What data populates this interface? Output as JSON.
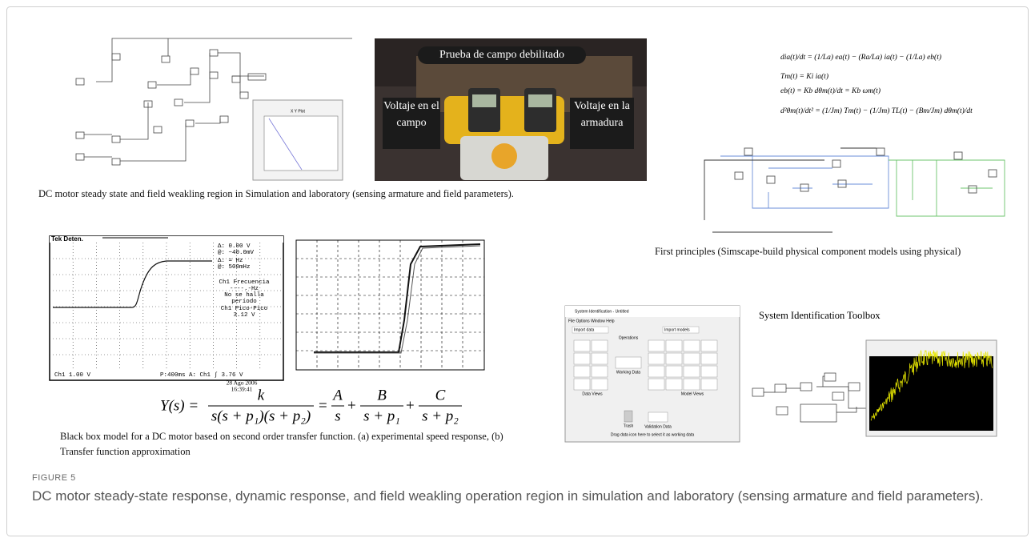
{
  "figure": {
    "label": "FIGURE 5",
    "caption": "DC motor steady-state response, dynamic response, and field weakling operation region in simulation and laboratory (sensing armature and field parameters)."
  },
  "panels": {
    "steady_state": {
      "caption": "DC motor steady state and field weakling region in Simulation  and laboratory (sensing armature  and field parameters).",
      "xy_plot_title": "X Y Plot",
      "photo_title": "Prueba de campo debilitado",
      "photo_left": "Voltaje en el campo",
      "photo_right": "Voltaje en la armadura"
    },
    "first_principles": {
      "equations": [
        "dia(t)/dt = (1/La) ea(t) − (Ra/La) ia(t) − (1/La) eb(t)",
        "Tm(t) = Ki ia(t)",
        "eb(t) = Kb dθm(t)/dt = Kb ωm(t)",
        "d²θm(t)/dt² = (1/Jm) Tm(t) − (1/Jm) TL(t) − (Bm/Jm) dθm(t)/dt"
      ],
      "caption": "First principles (Simscape-build physical component models using physical)"
    },
    "black_box": {
      "scope_header": "Tek Deten.",
      "scope_readout": [
        "Δ:   0.00 V",
        "@: −40.0mV",
        "Δ:      = Hz",
        "@: 500mHz"
      ],
      "scope_info": [
        "Ch1 Frecuencia",
        "----.-Hz",
        "No se halla",
        "período",
        "Ch1 Pico-Pico",
        "3.12 V"
      ],
      "scope_channel": "Ch1   1.00 V",
      "scope_timebase": "P:400ms  A: Ch1  ∫  3.76 V",
      "scope_date": "28 Ago 2006",
      "scope_time": "16:39:41",
      "equation": {
        "lhs": "Y(s) =",
        "numerator": "k",
        "denominator": "s(s + p₁)(s + p₂)",
        "equals": "=",
        "plus": "+",
        "terms": [
          {
            "num": "A",
            "den": "s"
          },
          {
            "num": "B",
            "den": "s + p₁"
          },
          {
            "num": "C",
            "den": "s + p₂"
          }
        ]
      },
      "caption": "Black box model for a DC motor based on second order transfer function. (a) experimental  speed response, (b) Transfer function approximation"
    },
    "sysid": {
      "title": "System Identification Toolbox",
      "window_title": "System Identification - Untitled",
      "menu": "File   Options   Window   Help",
      "import_data": "Import data",
      "import_models": "Import models",
      "operations": "Operations",
      "working_data": "Working Data",
      "data_views": "Data Views",
      "model_views": "Model Views",
      "trash": "Trash",
      "validation_data": "Validation Data",
      "hint": "Drag data icon here to select it as working data"
    }
  }
}
